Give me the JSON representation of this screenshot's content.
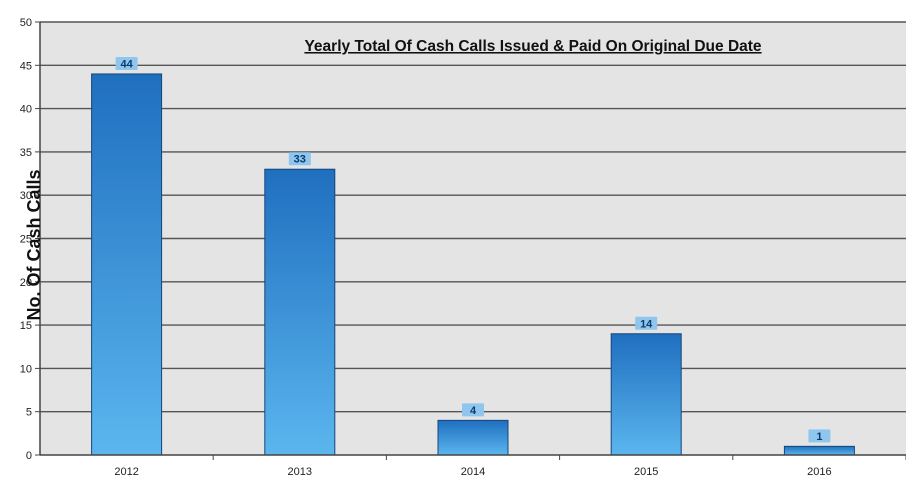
{
  "chart_data": {
    "type": "bar",
    "title": "Yearly Total Of Cash Calls Issued & Paid On Original Due Date",
    "xlabel": "",
    "ylabel": "No. Of Cash Calls",
    "categories": [
      "2012",
      "2013",
      "2014",
      "2015",
      "2016"
    ],
    "values": [
      44,
      33,
      4,
      14,
      1
    ],
    "data_labels": [
      "44",
      "33",
      "4",
      "14",
      "1"
    ],
    "ylim": [
      0,
      50
    ],
    "yticks": [
      0,
      5,
      10,
      15,
      20,
      25,
      30,
      35,
      40,
      45,
      50
    ],
    "grid": true,
    "legend": "none",
    "colors": {
      "bar_top": "#1f6fbf",
      "bar_bottom": "#5bb6ee",
      "plot_background": "#e4e4e4",
      "gridline": "#555555",
      "label_box": "#8fc6ee"
    }
  }
}
